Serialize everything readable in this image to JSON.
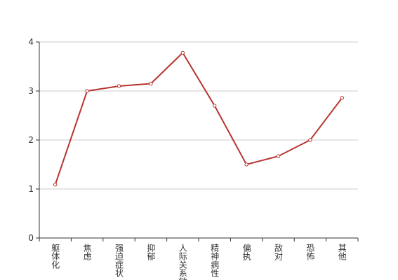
{
  "chart_data": {
    "type": "line",
    "categories": [
      "躯体化",
      "焦虑",
      "强迫症状",
      "抑郁",
      "人际关系敏感",
      "精神病性",
      "偏执",
      "敌对",
      "恐怖",
      "其他"
    ],
    "series": [
      {
        "color": "#b8342f",
        "values": [
          1.09,
          3.0,
          3.1,
          3.15,
          3.78,
          2.7,
          1.5,
          1.67,
          2.0,
          2.86
        ]
      }
    ],
    "ylim": [
      0,
      4
    ],
    "yticks": [
      0,
      1,
      2,
      3,
      4
    ],
    "grid": true
  }
}
